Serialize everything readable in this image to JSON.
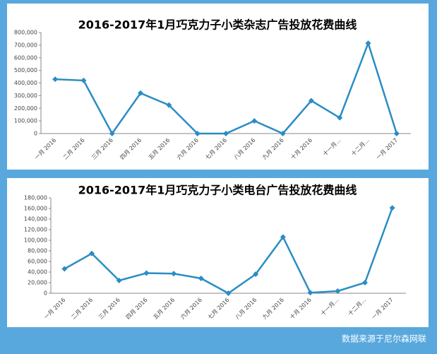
{
  "chart_data": [
    {
      "type": "line",
      "title": "2016-2017年1月巧克力子小类杂志广告投放花费曲线",
      "categories": [
        "一月 2016",
        "二月 2016",
        "三月 2016",
        "四月 2016",
        "五月 2016",
        "六月 2016",
        "七月 2016",
        "八月 2016",
        "九月 2016",
        "十月 2016",
        "十一月...",
        "十二月...",
        "一月 2017"
      ],
      "values": [
        430000,
        420000,
        0,
        320000,
        225000,
        0,
        0,
        100000,
        0,
        260000,
        125000,
        715000,
        0
      ],
      "color": "#2a8dc5",
      "ylim": [
        0,
        800000
      ],
      "yticks": [
        0,
        {
          "value": 100000,
          "label": "100,000"
        },
        {
          "value": 200000,
          "label": "200,000"
        },
        {
          "value": 300000,
          "label": "300,000"
        },
        {
          "value": 400000,
          "label": "400,000"
        },
        {
          "value": 500000,
          "label": "500,000"
        },
        {
          "value": 600000,
          "label": "600,000"
        },
        {
          "value": 700000,
          "label": "700,000"
        },
        {
          "value": 800000,
          "label": "800,000"
        }
      ],
      "grid": false
    },
    {
      "type": "line",
      "title": "2016-2017年1月巧克力子小类电台广告投放花费曲线",
      "categories": [
        "一月 2016",
        "二月 2016",
        "三月 2016",
        "四月 2016",
        "五月 2016",
        "六月 2016",
        "七月 2016",
        "八月 2016",
        "九月 2016",
        "十月 2016",
        "十一月...",
        "十二月...",
        "一月 2017"
      ],
      "values": [
        46000,
        75000,
        24000,
        38000,
        37000,
        28000,
        0,
        36000,
        106000,
        1000,
        4000,
        20000,
        161000
      ],
      "color": "#2a8dc5",
      "ylim": [
        0,
        180000
      ],
      "yticks": [
        0,
        {
          "value": 20000,
          "label": "20,000"
        },
        {
          "value": 40000,
          "label": "40,000"
        },
        {
          "value": 60000,
          "label": "60,000"
        },
        {
          "value": 80000,
          "label": "80,000"
        },
        {
          "value": 100000,
          "label": "100,000"
        },
        {
          "value": 120000,
          "label": "120,000"
        },
        {
          "value": 140000,
          "label": "140,000"
        },
        {
          "value": 160000,
          "label": "160,000"
        },
        {
          "value": 180000,
          "label": "180,000"
        }
      ],
      "grid": false
    }
  ],
  "source": "数据来源于尼尔森网联"
}
